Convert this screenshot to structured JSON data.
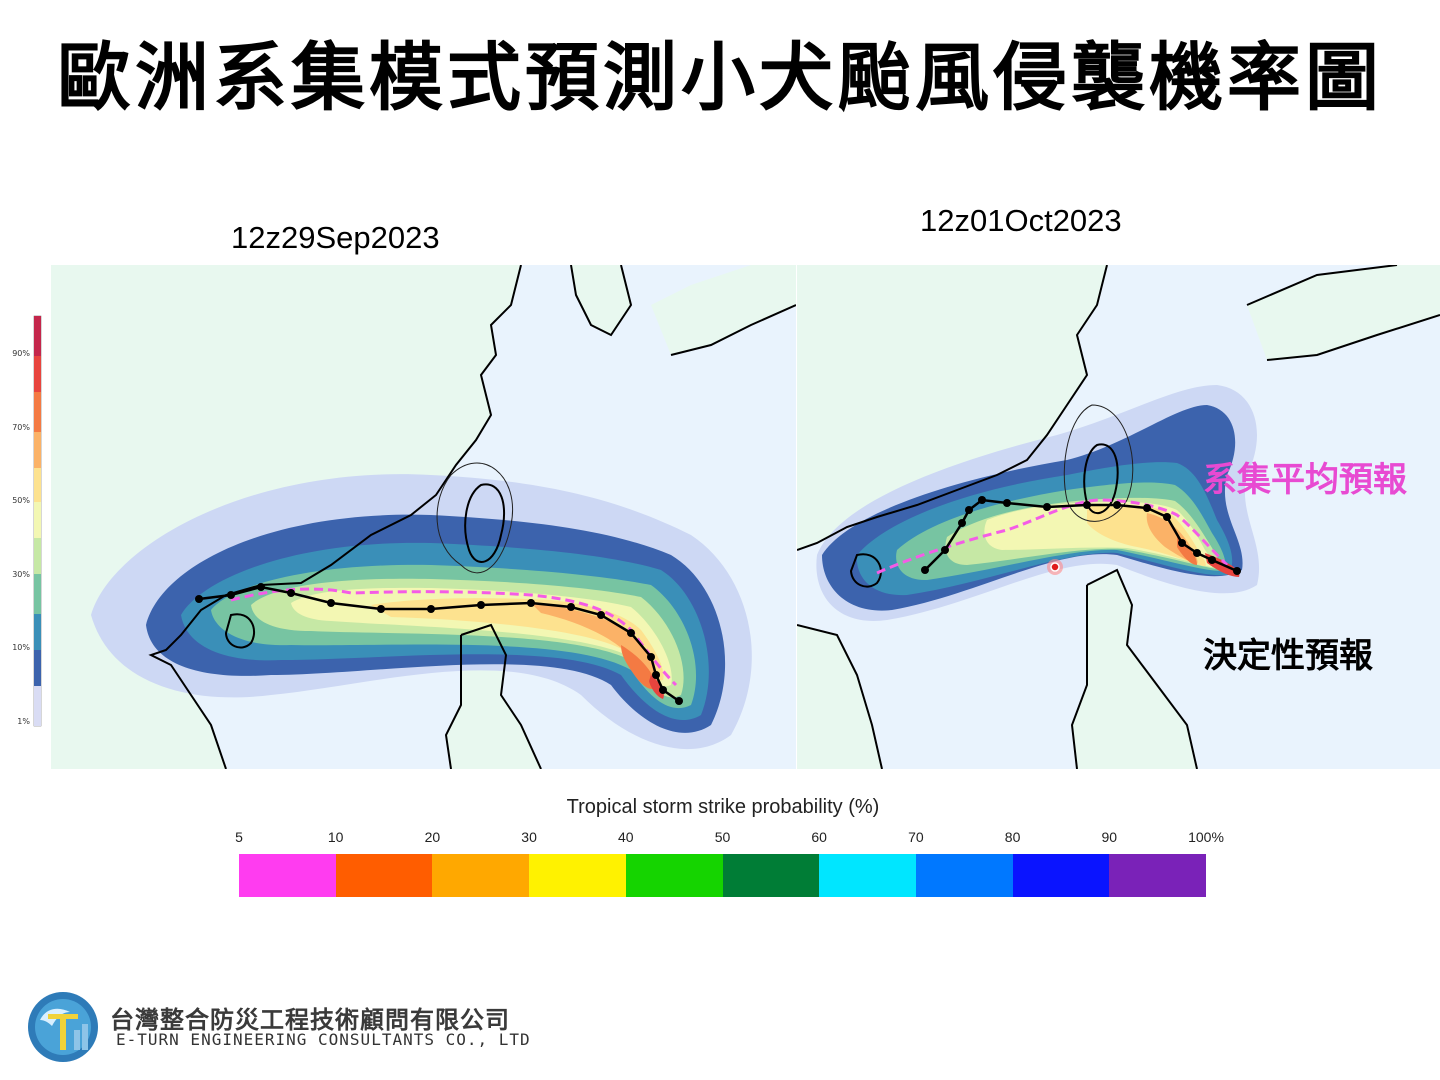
{
  "header": {
    "title": "歐洲系集模式預測小犬颱風侵襲機率圖"
  },
  "maps": [
    {
      "date": "12z29Sep2023"
    },
    {
      "date": "12z01Oct2023"
    }
  ],
  "annotations": {
    "ensemble_mean": "系集平均預報",
    "deterministic": "決定性預報"
  },
  "side_scale": {
    "ticks": [
      "90%",
      "70%",
      "50%",
      "30%",
      "10%",
      "1%"
    ]
  },
  "legend": {
    "title": "Tropical storm strike probability (%)",
    "ticks": [
      "5",
      "10",
      "20",
      "30",
      "40",
      "50",
      "60",
      "70",
      "80",
      "90",
      "100%"
    ],
    "colors": [
      "#ff3cf0",
      "#ff5d00",
      "#ffa800",
      "#fff200",
      "#15d400",
      "#007d36",
      "#00e6ff",
      "#0078ff",
      "#0a14ff",
      "#7a22b8"
    ]
  },
  "company": {
    "name_cn": "台灣整合防災工程技術顧問有限公司",
    "name_en": "E-TURN ENGINEERING CONSULTANTS CO., LTD"
  },
  "colors": {
    "land": "#e8f8ef",
    "sea": "#e9f3fd",
    "ensemble_track": "#f45ce6",
    "deterministic_track": "#000000"
  }
}
